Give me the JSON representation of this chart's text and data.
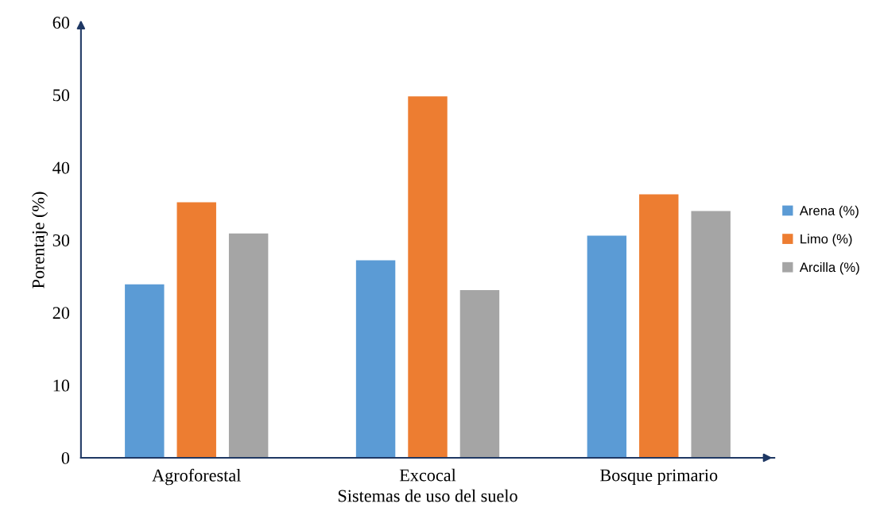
{
  "chart_data": {
    "type": "bar",
    "xlabel": "Sistemas de uso del suelo",
    "ylabel": "Porentaje (%)",
    "categories": [
      "Agroforestal",
      "Excocal",
      "Bosque primario"
    ],
    "series": [
      {
        "name": "Arena (%)",
        "color": "#5b9bd5",
        "values": [
          23.9,
          27.2,
          30.6
        ]
      },
      {
        "name": "Limo (%)",
        "color": "#ed7d31",
        "values": [
          35.2,
          49.8,
          36.3
        ]
      },
      {
        "name": "Arcilla (%)",
        "color": "#a5a5a5",
        "values": [
          30.9,
          23.1,
          34.0
        ]
      }
    ],
    "ylim": [
      0,
      60
    ],
    "yticks": [
      0,
      10,
      20,
      30,
      40,
      50,
      60
    ],
    "grid": false,
    "legend": "right"
  }
}
